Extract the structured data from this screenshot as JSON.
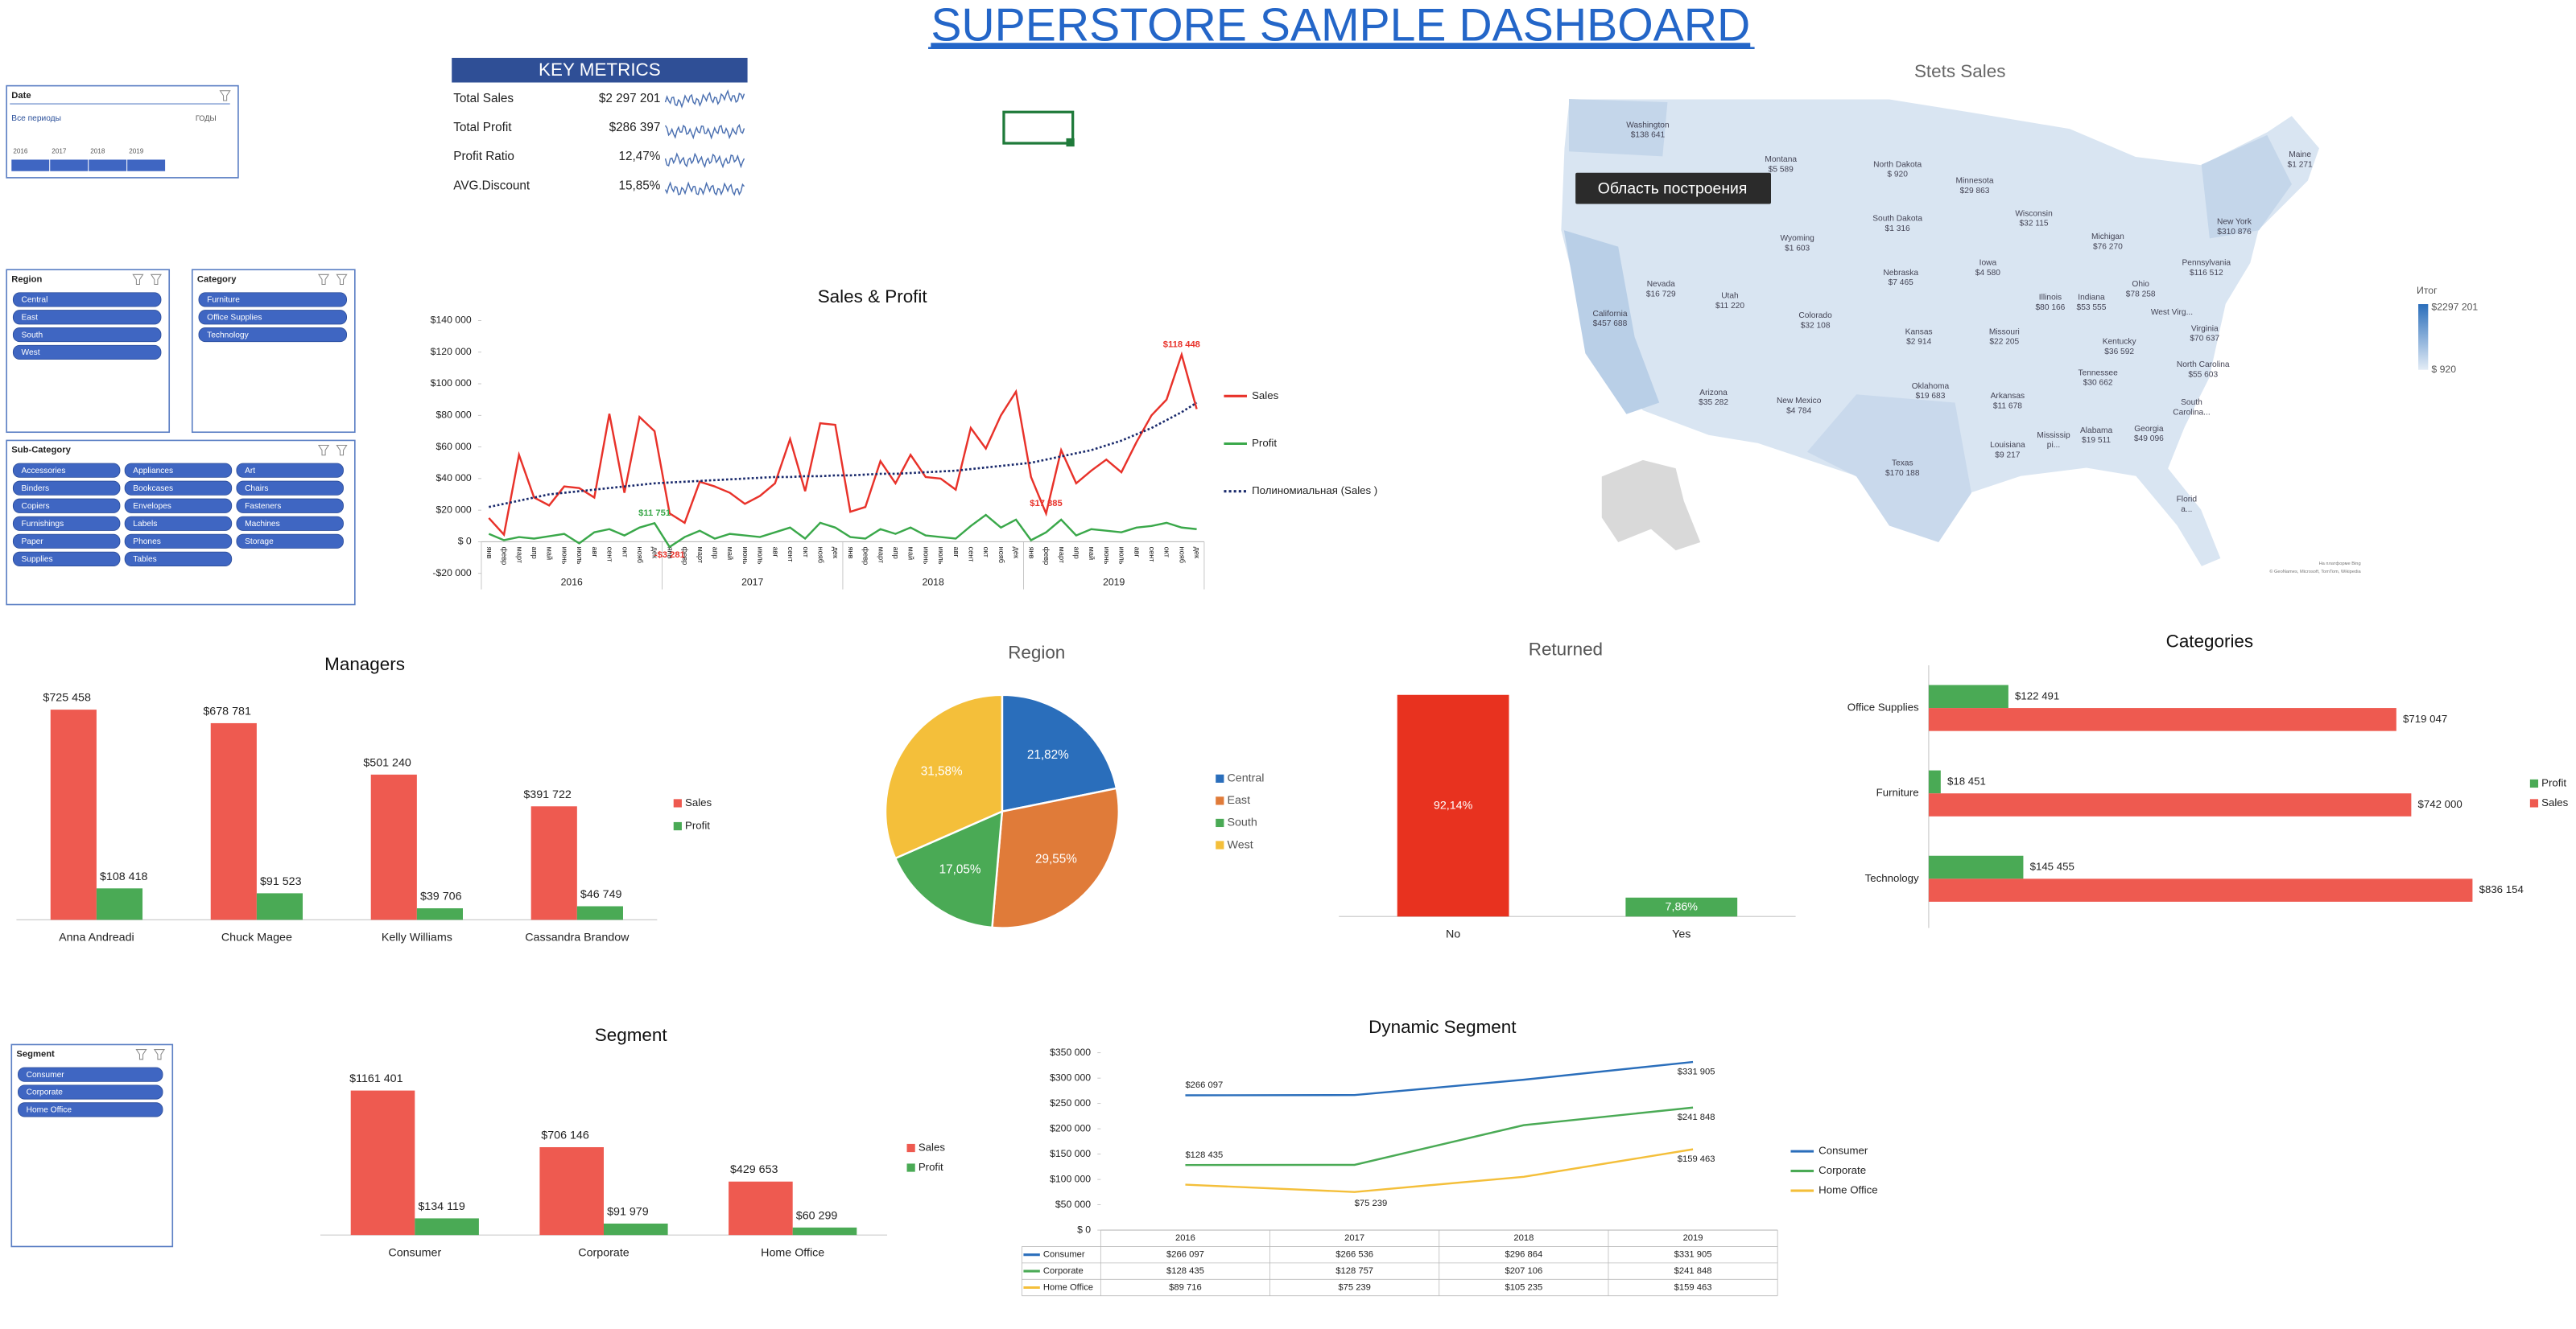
{
  "title": "SUPERSTORE SAMPLE DASHBOARD",
  "date_slicer": {
    "title": "Date",
    "period": "Все периоды",
    "unit": "ГОДЫ",
    "years": [
      "2016",
      "2017",
      "2018",
      "2019"
    ]
  },
  "slicers": [
    {
      "title": "Region",
      "items": [
        "Central",
        "East",
        "South",
        "West"
      ]
    },
    {
      "title": "Category",
      "items": [
        "Furniture",
        "Office Supplies",
        "Technology"
      ]
    },
    {
      "title": "Sub-Category",
      "items": [
        "Accessories",
        "Appliances",
        "Art",
        "Binders",
        "Bookcases",
        "Chairs",
        "Copiers",
        "Envelopes",
        "Fasteners",
        "Furnishings",
        "Labels",
        "Machines",
        "Paper",
        "Phones",
        "Storage",
        "Supplies",
        "Tables"
      ]
    },
    {
      "title": "Segment",
      "items": [
        "Consumer",
        "Corporate",
        "Home Office"
      ]
    }
  ],
  "key_metrics": {
    "title": "KEY METRICS",
    "rows": [
      {
        "label": "Total Sales",
        "value": "$2 297 201"
      },
      {
        "label": "Total Profit",
        "value": "$286 397"
      },
      {
        "label": "Profit Ratio",
        "value": "12,47%"
      },
      {
        "label": "AVG.Discount",
        "value": "15,85%"
      }
    ]
  },
  "map": {
    "title": "Stets Sales",
    "tooltip": "Область построения",
    "legend_title": "Итог",
    "legend_max": "$2297 201",
    "legend_min": "$ 920",
    "credits": [
      "На платформе Bing",
      "© GeoNames, Microsoft, TomTom, Wikipedia"
    ],
    "states": [
      {
        "name": "Washington",
        "value": "$138 641"
      },
      {
        "name": "Montana",
        "value": "$5 589"
      },
      {
        "name": "North Dakota",
        "value": "$ 920"
      },
      {
        "name": "Minnesota",
        "value": "$29 863"
      },
      {
        "name": "Maine",
        "value": "$1 271"
      },
      {
        "name": "Wisconsin",
        "value": "$32 115"
      },
      {
        "name": "South Dakota",
        "value": "$1 316"
      },
      {
        "name": "Michigan",
        "value": "$76 270"
      },
      {
        "name": "New York",
        "value": "$310 876"
      },
      {
        "name": "Wyoming",
        "value": "$1 603"
      },
      {
        "name": "Pennsylvania",
        "value": "$116 512"
      },
      {
        "name": "Nebraska",
        "value": "$7 465"
      },
      {
        "name": "Iowa",
        "value": "$4 580"
      },
      {
        "name": "Ohio",
        "value": "$78 258"
      },
      {
        "name": "Nevada",
        "value": "$16 729"
      },
      {
        "name": "Utah",
        "value": "$11 220"
      },
      {
        "name": "Illinois",
        "value": "$80 166"
      },
      {
        "name": "Indiana",
        "value": "$53 555"
      },
      {
        "name": "California",
        "value": "$457 688"
      },
      {
        "name": "Colorado",
        "value": "$32 108"
      },
      {
        "name": "Kansas",
        "value": "$2 914"
      },
      {
        "name": "Missouri",
        "value": "$22 205"
      },
      {
        "name": "West Virg..."
      },
      {
        "name": "Kentucky",
        "value": "$36 592"
      },
      {
        "name": "Virginia",
        "value": "$70 637"
      },
      {
        "name": "Tennessee",
        "value": "$30 662"
      },
      {
        "name": "North Carolina",
        "value": "$55 603"
      },
      {
        "name": "Arizona",
        "value": "$35 282"
      },
      {
        "name": "New Mexico",
        "value": "$4 784"
      },
      {
        "name": "Oklahoma",
        "value": "$19 683"
      },
      {
        "name": "Arkansas",
        "value": "$11 678"
      },
      {
        "name": "South",
        "value": "Carolina..."
      },
      {
        "name": "Georgia",
        "value": "$49 096"
      },
      {
        "name": "Alabama",
        "value": "$19 511"
      },
      {
        "name": "Mississip",
        "value": "pi..."
      },
      {
        "name": "Louisiana",
        "value": "$9 217"
      },
      {
        "name": "Texas",
        "value": "$170 188"
      },
      {
        "name": "Florid",
        "value": "a..."
      }
    ]
  },
  "chart_data": [
    {
      "type": "line",
      "title": "Sales & Profit",
      "categories": [
        "янв",
        "февр",
        "март",
        "апр",
        "май",
        "июнь",
        "июль",
        "авг",
        "сент",
        "окт",
        "нояб",
        "дек",
        "янв",
        "февр",
        "март",
        "апр",
        "май",
        "июнь",
        "июль",
        "авг",
        "сент",
        "окт",
        "нояб",
        "дек",
        "янв",
        "февр",
        "март",
        "апр",
        "май",
        "июнь",
        "июль",
        "авг",
        "сент",
        "окт",
        "нояб",
        "дек",
        "янв",
        "февр",
        "март",
        "апр",
        "май",
        "июнь",
        "июль",
        "авг",
        "сент",
        "окт",
        "нояб",
        "дек"
      ],
      "year_groups": [
        "2016",
        "2017",
        "2018",
        "2019"
      ],
      "ylim": [
        -20000,
        140000
      ],
      "yticks": [
        {
          "value": -20000,
          "label": "-$20 000"
        },
        {
          "value": 0,
          "label": "$ 0"
        },
        {
          "value": 20000,
          "label": "$20 000"
        },
        {
          "value": 40000,
          "label": "$40 000"
        },
        {
          "value": 60000,
          "label": "$60 000"
        },
        {
          "value": 80000,
          "label": "$80 000"
        },
        {
          "value": 100000,
          "label": "$100 000"
        },
        {
          "value": 120000,
          "label": "$120 000"
        },
        {
          "value": 140000,
          "label": "$140 000"
        }
      ],
      "grid": false,
      "series": [
        {
          "name": "Sales",
          "color": "#e8322a",
          "values": [
            15000,
            4500,
            55000,
            28000,
            23000,
            35000,
            34000,
            28000,
            81000,
            31000,
            79000,
            70000,
            18000,
            12000,
            38000,
            35000,
            31000,
            24000,
            29000,
            37000,
            65000,
            32000,
            75000,
            74000,
            19000,
            22000,
            51000,
            37000,
            55000,
            41000,
            40000,
            33000,
            72000,
            59000,
            80000,
            95000,
            41000,
            17885,
            58000,
            37000,
            45000,
            52000,
            44000,
            63000,
            80000,
            90000,
            118448,
            84000
          ],
          "value_labels": [
            null,
            null,
            null,
            null,
            null,
            null,
            null,
            null,
            null,
            null,
            null,
            null,
            null,
            null,
            null,
            null,
            null,
            null,
            null,
            null,
            null,
            null,
            null,
            null,
            null,
            null,
            null,
            null,
            null,
            null,
            null,
            null,
            null,
            null,
            null,
            null,
            null,
            "$17 885",
            null,
            null,
            null,
            null,
            null,
            null,
            null,
            null,
            "$118 448",
            null
          ]
        },
        {
          "name": "Profit",
          "color": "#3aa84a",
          "values": [
            5000,
            1000,
            3000,
            2000,
            3500,
            5000,
            -1000,
            6000,
            8000,
            4000,
            9000,
            11751,
            -3281,
            3000,
            7000,
            2000,
            5000,
            4000,
            3000,
            6000,
            9000,
            2000,
            12000,
            9000,
            3000,
            2000,
            8000,
            5000,
            9000,
            4000,
            3000,
            2000,
            10000,
            17000,
            9000,
            14000,
            1000,
            6000,
            14000,
            4000,
            8000,
            7000,
            6000,
            9000,
            10000,
            12000,
            9000,
            8000
          ],
          "value_labels": [
            null,
            null,
            null,
            null,
            null,
            null,
            null,
            null,
            null,
            null,
            null,
            "$11 751",
            "-$3 281",
            null,
            null,
            null,
            null,
            null,
            null,
            null,
            null,
            null,
            null,
            null,
            null,
            null,
            null,
            null,
            null,
            null,
            null,
            null,
            null,
            null,
            null,
            null,
            null,
            null,
            null,
            null,
            null,
            null,
            null,
            null,
            null,
            null,
            null,
            null
          ]
        },
        {
          "name": "Полиномиальная (Sales )",
          "color": "#1a2a6c",
          "dash": true,
          "values": [
            22000,
            24000,
            26000,
            28000,
            30000,
            31000,
            32000,
            33000,
            34000,
            35000,
            36000,
            37000,
            37500,
            38000,
            38500,
            39000,
            39500,
            40000,
            40500,
            41000,
            41000,
            41500,
            41500,
            42000,
            42000,
            42500,
            43000,
            43000,
            43500,
            44000,
            44500,
            45000,
            46000,
            47000,
            48000,
            49000,
            50000,
            52000,
            54000,
            56000,
            58000,
            61000,
            64000,
            68000,
            72000,
            77000,
            82000,
            88000
          ]
        }
      ]
    },
    {
      "type": "bar",
      "title": "Managers",
      "categories": [
        "Anna Andreadi",
        "Chuck Magee",
        "Kelly Williams",
        "Cassandra Brandow"
      ],
      "series": [
        {
          "name": "Sales",
          "color": "#ee5a50",
          "values": [
            725458,
            678781,
            501240,
            391722
          ],
          "value_labels": [
            "$725 458",
            "$678 781",
            "$501 240",
            "$391 722"
          ]
        },
        {
          "name": "Profit",
          "color": "#4aaa55",
          "values": [
            108418,
            91523,
            39706,
            46749
          ],
          "value_labels": [
            "$108 418",
            "$91 523",
            "$39 706",
            "$46 749"
          ]
        }
      ]
    },
    {
      "type": "pie",
      "title": "Region",
      "categories": [
        "Central",
        "East",
        "South",
        "West"
      ],
      "values": [
        21.82,
        29.55,
        17.05,
        31.58
      ],
      "value_labels": [
        "21,82%",
        "29,55%",
        "17,05%",
        "31,58%"
      ],
      "colors": [
        "#2a6ebb",
        "#e07b39",
        "#4aaa55",
        "#f4bf3a"
      ]
    },
    {
      "type": "bar",
      "title": "Returned",
      "categories": [
        "No",
        "Yes"
      ],
      "values": [
        92.14,
        7.86
      ],
      "value_labels": [
        "92,14%",
        "7,86%"
      ],
      "colors": [
        "#e8321f",
        "#4aaa55"
      ]
    },
    {
      "type": "barh",
      "title": "Categories",
      "categories": [
        "Office Supplies",
        "Furniture",
        "Technology"
      ],
      "series": [
        {
          "name": "Profit",
          "color": "#4aaa55",
          "values": [
            122491,
            18451,
            145455
          ],
          "value_labels": [
            "$122 491",
            "$18 451",
            "$145 455"
          ]
        },
        {
          "name": "Sales",
          "color": "#ee5a50",
          "values": [
            719047,
            742000,
            836154
          ],
          "value_labels": [
            "$719 047",
            "$742 000",
            "$836 154"
          ]
        }
      ]
    },
    {
      "type": "bar",
      "title": "Segment",
      "categories": [
        "Consumer",
        "Corporate",
        "Home Office"
      ],
      "series": [
        {
          "name": "Sales",
          "color": "#ee5a50",
          "values": [
            1161401,
            706146,
            429653
          ],
          "value_labels": [
            "$1161 401",
            "$706 146",
            "$429 653"
          ]
        },
        {
          "name": "Profit",
          "color": "#4aaa55",
          "values": [
            134119,
            91979,
            60299
          ],
          "value_labels": [
            "$134 119",
            "$91 979",
            "$60 299"
          ]
        }
      ]
    },
    {
      "type": "line",
      "title": "Dynamic Segment",
      "categories": [
        "2016",
        "2017",
        "2018",
        "2019"
      ],
      "ylim": [
        0,
        350000
      ],
      "yticks": [
        {
          "value": 0,
          "label": "$ 0"
        },
        {
          "value": 50000,
          "label": "$50 000"
        },
        {
          "value": 100000,
          "label": "$100 000"
        },
        {
          "value": 150000,
          "label": "$150 000"
        },
        {
          "value": 200000,
          "label": "$200 000"
        },
        {
          "value": 250000,
          "label": "$250 000"
        },
        {
          "value": 300000,
          "label": "$300 000"
        },
        {
          "value": 350000,
          "label": "$350 000"
        }
      ],
      "grid": false,
      "data_table": true,
      "series": [
        {
          "name": "Consumer",
          "color": "#2a6ebb",
          "values": [
            266097,
            266536,
            296864,
            331905
          ],
          "value_labels": [
            "$266 097",
            "$266 536",
            "$296 864",
            "$331 905"
          ],
          "label_points": [
            0,
            3
          ]
        },
        {
          "name": "Corporate",
          "color": "#4aaa55",
          "values": [
            128435,
            128757,
            207106,
            241848
          ],
          "value_labels": [
            "$128 435",
            "$128 757",
            "$207 106",
            "$241 848"
          ],
          "label_points": [
            0,
            3
          ]
        },
        {
          "name": "Home Office",
          "color": "#f4bf3a",
          "values": [
            89716,
            75239,
            105235,
            159463
          ],
          "value_labels": [
            "$89 716",
            "$75 239",
            "$105 235",
            "$159 463"
          ],
          "label_points": [
            1,
            3
          ]
        }
      ]
    }
  ]
}
